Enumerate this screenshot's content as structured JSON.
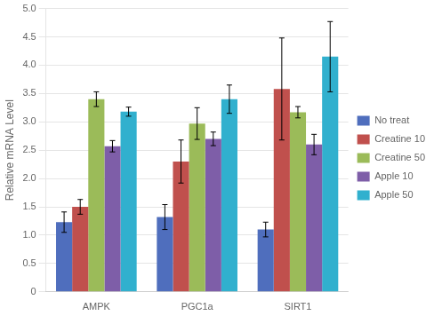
{
  "chart_data": {
    "type": "bar",
    "ylabel": "Relative mRNA Level",
    "categories": [
      "AMPK",
      "PGC1a",
      "SIRT1"
    ],
    "series": [
      {
        "name": "No treat",
        "color": "#4F6EBD",
        "values": [
          1.23,
          1.32,
          1.1
        ],
        "errors": [
          0.18,
          0.22,
          0.13
        ]
      },
      {
        "name": "Creatine 10",
        "color": "#C0504D",
        "values": [
          1.5,
          2.3,
          3.58
        ],
        "errors": [
          0.13,
          0.38,
          0.9
        ]
      },
      {
        "name": "Creatine 50",
        "color": "#9BBB59",
        "values": [
          3.4,
          2.97,
          3.17
        ],
        "errors": [
          0.13,
          0.28,
          0.1
        ]
      },
      {
        "name": "Apple 10",
        "color": "#7E5EA8",
        "values": [
          2.57,
          2.7,
          2.6
        ],
        "errors": [
          0.1,
          0.12,
          0.18
        ]
      },
      {
        "name": "Apple 50",
        "color": "#31B0CE",
        "values": [
          3.18,
          3.4,
          4.15
        ],
        "errors": [
          0.08,
          0.25,
          0.62
        ]
      }
    ],
    "ylim": [
      0,
      5
    ],
    "yticks": [
      0,
      0.5,
      {
        "value": 1,
        "label": "1.0"
      },
      1.5,
      {
        "value": 2,
        "label": "2.0"
      },
      2.5,
      {
        "value": 3,
        "label": "3.0"
      },
      3.5,
      {
        "value": 4,
        "label": "4.0"
      },
      4.5,
      {
        "value": 5,
        "label": "5.0"
      }
    ],
    "grid": true,
    "legend": "right"
  }
}
